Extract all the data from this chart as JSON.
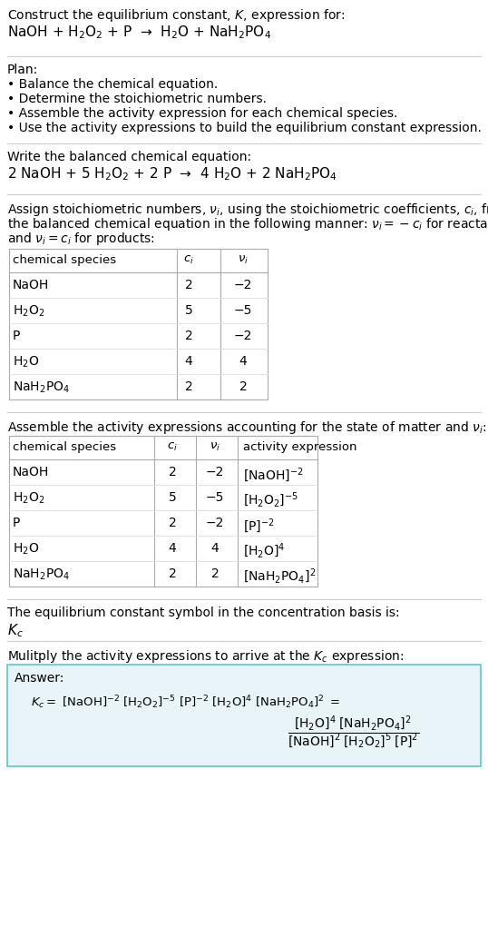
{
  "bg_color": "#ffffff",
  "text_color": "#000000",
  "section1_title": "Construct the equilibrium constant, $K$, expression for:",
  "section1_reaction": "NaOH + H$_2$O$_2$ + P  →  H$_2$O + NaH$_2$PO$_4$",
  "section2_title": "Plan:",
  "section2_bullets": [
    "• Balance the chemical equation.",
    "• Determine the stoichiometric numbers.",
    "• Assemble the activity expression for each chemical species.",
    "• Use the activity expressions to build the equilibrium constant expression."
  ],
  "section3_title": "Write the balanced chemical equation:",
  "section3_equation": "2 NaOH + 5 H$_2$O$_2$ + 2 P  →  4 H$_2$O + 2 NaH$_2$PO$_4$",
  "section4_intro_lines": [
    "Assign stoichiometric numbers, $\\nu_i$, using the stoichiometric coefficients, $c_i$, from",
    "the balanced chemical equation in the following manner: $\\nu_i = -c_i$ for reactants",
    "and $\\nu_i = c_i$ for products:"
  ],
  "table1_headers": [
    "chemical species",
    "$c_i$",
    "$\\nu_i$"
  ],
  "table1_rows": [
    [
      "NaOH",
      "2",
      "−2"
    ],
    [
      "H$_2$O$_2$",
      "5",
      "−5"
    ],
    [
      "P",
      "2",
      "−2"
    ],
    [
      "H$_2$O",
      "4",
      "4"
    ],
    [
      "NaH$_2$PO$_4$",
      "2",
      "2"
    ]
  ],
  "section5_intro": "Assemble the activity expressions accounting for the state of matter and $\\nu_i$:",
  "table2_headers": [
    "chemical species",
    "$c_i$",
    "$\\nu_i$",
    "activity expression"
  ],
  "table2_rows": [
    [
      "NaOH",
      "2",
      "−2",
      "[NaOH]$^{-2}$"
    ],
    [
      "H$_2$O$_2$",
      "5",
      "−5",
      "[H$_2$O$_2$]$^{-5}$"
    ],
    [
      "P",
      "2",
      "−2",
      "[P]$^{-2}$"
    ],
    [
      "H$_2$O",
      "4",
      "4",
      "[H$_2$O]$^{4}$"
    ],
    [
      "NaH$_2$PO$_4$",
      "2",
      "2",
      "[NaH$_2$PO$_4$]$^{2}$"
    ]
  ],
  "section6_text1": "The equilibrium constant symbol in the concentration basis is:",
  "section6_symbol": "$K_c$",
  "section7_title": "Mulitply the activity expressions to arrive at the $K_c$ expression:",
  "answer_box_color": "#e8f4f8",
  "answer_box_border": "#5bc8d0",
  "answer_label": "Answer:",
  "answer_line1": "$K_c = $ [NaOH]$^{-2}$ [H$_2$O$_2$]$^{-5}$ [P]$^{-2}$ [H$_2$O]$^{4}$ [NaH$_2$PO$_4$]$^{2}$ $=$"
}
